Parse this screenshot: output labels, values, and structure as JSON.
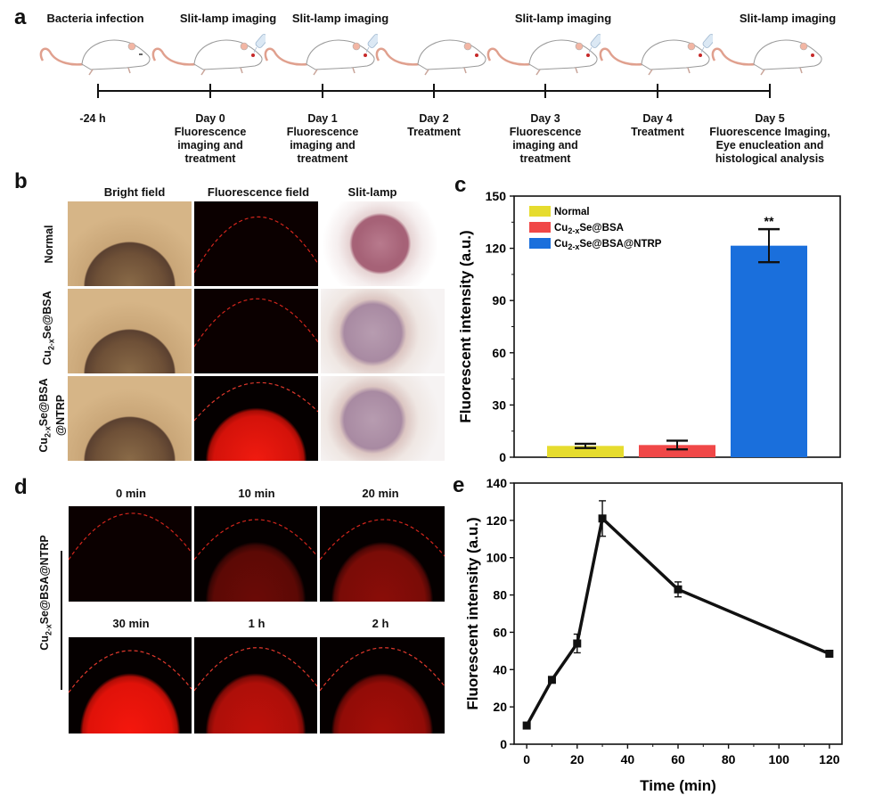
{
  "panel_labels": {
    "a": "a",
    "b": "b",
    "c": "c",
    "d": "d",
    "e": "e"
  },
  "timeline": {
    "top_labels": [
      "Bacteria infection",
      "Slit-lamp imaging",
      "Slit-lamp imaging",
      "",
      "Slit-lamp imaging",
      "",
      "Slit-lamp imaging"
    ],
    "ticks": [
      {
        "day": "-24 h",
        "desc": []
      },
      {
        "day": "Day 0",
        "desc": [
          "Fluorescence",
          "imaging and",
          "treatment"
        ]
      },
      {
        "day": "Day 1",
        "desc": [
          "Fluorescence",
          "imaging and",
          "treatment"
        ]
      },
      {
        "day": "Day 2",
        "desc": [
          "Treatment"
        ]
      },
      {
        "day": "Day 3",
        "desc": [
          "Fluorescence",
          "imaging and",
          "treatment"
        ]
      },
      {
        "day": "Day 4",
        "desc": [
          "Treatment"
        ]
      },
      {
        "day": "Day 5",
        "desc": [
          "Fluorescence Imaging,",
          "Eye enucleation and",
          "histological analysis"
        ]
      }
    ],
    "eyedrop_on": [
      false,
      true,
      true,
      false,
      true,
      true,
      false
    ]
  },
  "panel_b": {
    "columns": [
      "Bright field",
      "Fluorescence field",
      "Slit-lamp"
    ],
    "rows": [
      {
        "label": "Normal",
        "sub": ""
      },
      {
        "label": "Cu2-xSe@BSA",
        "sub": ""
      },
      {
        "label": "Cu2-xSe@BSA",
        "sub": "@NTRP"
      }
    ]
  },
  "panel_d": {
    "side_label": "Cu2-xSe@BSA@NTRP",
    "times": [
      "0 min",
      "10 min",
      "20 min",
      "30 min",
      "1 h",
      "2 h"
    ]
  },
  "chart_data": [
    {
      "type": "bar",
      "panel": "c",
      "title": "",
      "xlabel": "",
      "ylabel": "Fluorescent intensity (a.u.)",
      "ylim": [
        0,
        150
      ],
      "yticks": [
        0,
        30,
        60,
        90,
        120,
        150
      ],
      "categories": [
        "Normal",
        "Cu2-xSe@BSA",
        "Cu2-xSe@BSA@NTRP"
      ],
      "values": [
        6.5,
        7,
        121.5
      ],
      "errors": [
        1.2,
        2.5,
        9.5
      ],
      "colors": [
        "#e6dc2e",
        "#f04848",
        "#1a6fdc"
      ],
      "annotations": [
        {
          "category": "Cu2-xSe@BSA@NTRP",
          "text": "**"
        }
      ],
      "legend": {
        "position": "top-left",
        "entries": [
          "Normal",
          "Cu2-xSe@BSA",
          "Cu2-xSe@BSA@NTRP"
        ]
      },
      "grid": false
    },
    {
      "type": "line",
      "panel": "e",
      "title": "",
      "xlabel": "Time (min)",
      "ylabel": "Fluorescent intensity (a.u.)",
      "xlim": [
        -5,
        125
      ],
      "ylim": [
        0,
        140
      ],
      "xticks": [
        0,
        20,
        40,
        60,
        80,
        100,
        120
      ],
      "yticks": [
        0,
        20,
        40,
        60,
        80,
        100,
        120,
        140
      ],
      "x": [
        0,
        10,
        20,
        30,
        60,
        120
      ],
      "y": [
        10,
        34.5,
        54,
        121,
        83,
        48.5
      ],
      "errors": [
        1.5,
        1.5,
        5,
        9.5,
        4,
        1.5
      ],
      "grid": false
    }
  ]
}
